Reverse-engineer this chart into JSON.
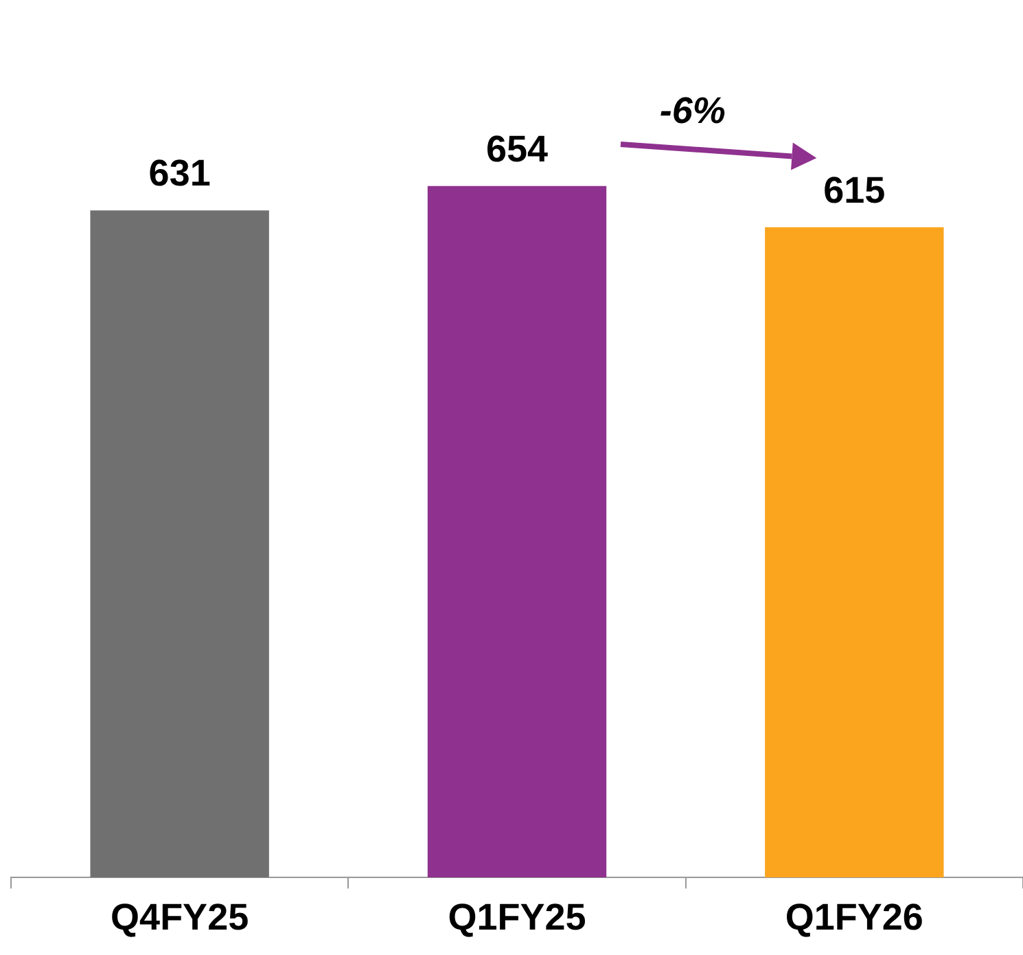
{
  "chart_data": {
    "type": "bar",
    "categories": [
      "Q4FY25",
      "Q1FY25",
      "Q1FY26"
    ],
    "values": [
      631,
      654,
      615
    ],
    "colors": [
      "#717070",
      "#8f318f",
      "#fba51f"
    ],
    "tick_labels": "x",
    "data_labels": true,
    "grid": false,
    "legend": false,
    "annotations": [
      "-6%"
    ]
  }
}
